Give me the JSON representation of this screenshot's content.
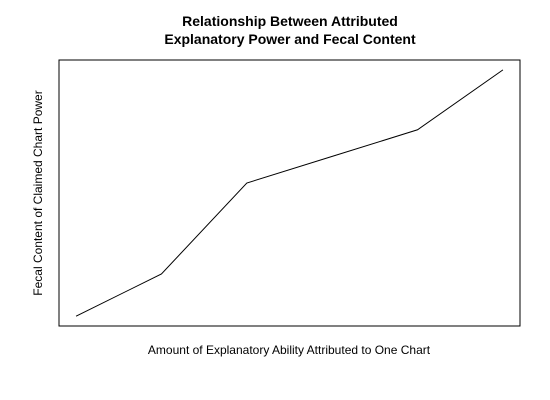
{
  "chart_data": {
    "type": "line",
    "title_lines": [
      "Relationship Between Attributed",
      "Explanatory Power and Fecal Content"
    ],
    "xlabel": "Amount of Explanatory Ability Attributed to One Chart",
    "ylabel": "Fecal Content of Claimed Chart Power",
    "x_ticks_shown": false,
    "y_ticks_shown": false,
    "grid": false,
    "frame": true,
    "x": [
      1,
      2,
      3,
      4,
      5,
      6
    ],
    "y": [
      0,
      0.19,
      0.6,
      0.72,
      0.84,
      1.11
    ],
    "line_color": "#000000"
  }
}
